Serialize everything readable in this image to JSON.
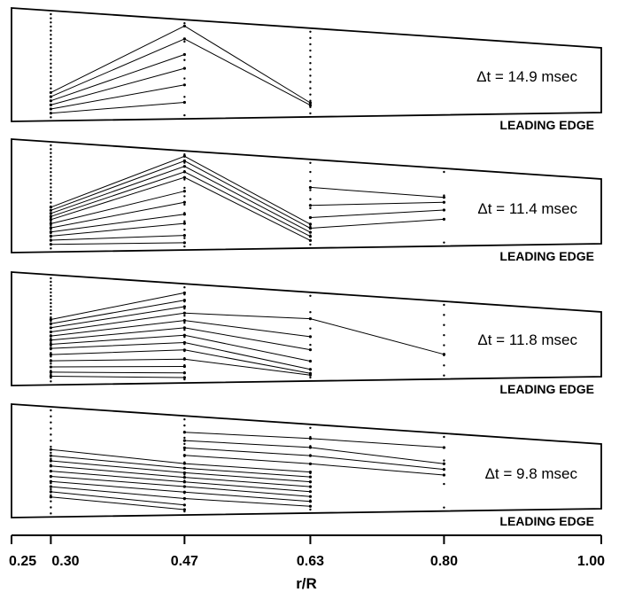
{
  "axis": {
    "title": "r/R",
    "ticks": [
      "0.25",
      "0.30",
      "0.47",
      "0.63",
      "0.80",
      "1.00"
    ],
    "tick_values": [
      0.25,
      0.3,
      0.47,
      0.63,
      0.8,
      1.0
    ]
  },
  "leading_edge_label": "LEADING EDGE",
  "panels": [
    {
      "dt_label": "Δt = 14.9 msec",
      "stations": [
        {
          "r": 0.3,
          "dots": 26
        },
        {
          "r": 0.47,
          "dots": 6
        },
        {
          "r": 0.63,
          "dots": 14
        }
      ],
      "lines": [
        [
          [
            0.3,
            0.24
          ],
          [
            0.47,
            0.97
          ],
          [
            0.63,
            0.13
          ]
        ],
        [
          [
            0.3,
            0.2
          ],
          [
            0.47,
            0.83
          ],
          [
            0.63,
            0.1
          ]
        ],
        [
          [
            0.3,
            0.16
          ],
          [
            0.47,
            0.66
          ]
        ],
        [
          [
            0.3,
            0.12
          ],
          [
            0.47,
            0.51
          ]
        ],
        [
          [
            0.3,
            0.08
          ],
          [
            0.47,
            0.33
          ]
        ],
        [
          [
            0.3,
            0.04
          ],
          [
            0.47,
            0.14
          ]
        ]
      ]
    },
    {
      "dt_label": "Δt = 11.4 msec",
      "stations": [
        {
          "r": 0.3,
          "dots": 28
        },
        {
          "r": 0.47,
          "dots": 12
        },
        {
          "r": 0.63,
          "dots": 10
        },
        {
          "r": 0.8,
          "dots": 4
        }
      ],
      "lines": [
        [
          [
            0.3,
            0.4
          ],
          [
            0.47,
            0.98
          ],
          [
            0.63,
            0.25
          ]
        ],
        [
          [
            0.3,
            0.37
          ],
          [
            0.47,
            0.93
          ],
          [
            0.63,
            0.2
          ]
        ],
        [
          [
            0.3,
            0.34
          ],
          [
            0.47,
            0.87
          ],
          [
            0.63,
            0.15
          ]
        ],
        [
          [
            0.3,
            0.31
          ],
          [
            0.47,
            0.81
          ],
          [
            0.63,
            0.1
          ]
        ],
        [
          [
            0.3,
            0.28
          ],
          [
            0.47,
            0.75
          ],
          [
            0.63,
            0.05
          ]
        ],
        [
          [
            0.3,
            0.24
          ],
          [
            0.47,
            0.6
          ]
        ],
        [
          [
            0.3,
            0.2
          ],
          [
            0.47,
            0.48
          ]
        ],
        [
          [
            0.3,
            0.16
          ],
          [
            0.47,
            0.35
          ]
        ],
        [
          [
            0.3,
            0.12
          ],
          [
            0.47,
            0.25
          ]
        ],
        [
          [
            0.3,
            0.08
          ],
          [
            0.47,
            0.12
          ]
        ],
        [
          [
            0.3,
            0.04
          ],
          [
            0.47,
            0.04
          ]
        ],
        [
          [
            0.63,
            0.7
          ],
          [
            0.8,
            0.64
          ]
        ],
        [
          [
            0.63,
            0.48
          ],
          [
            0.8,
            0.57
          ]
        ],
        [
          [
            0.63,
            0.33
          ],
          [
            0.8,
            0.46
          ]
        ],
        [
          [
            0.63,
            0.2
          ],
          [
            0.8,
            0.33
          ]
        ]
      ]
    },
    {
      "dt_label": "Δt = 11.8 msec",
      "stations": [
        {
          "r": 0.3,
          "dots": 30
        },
        {
          "r": 0.47,
          "dots": 14
        },
        {
          "r": 0.63,
          "dots": 6
        },
        {
          "r": 0.8,
          "dots": 8
        }
      ],
      "lines": [
        [
          [
            0.3,
            0.6
          ],
          [
            0.47,
            0.94
          ]
        ],
        [
          [
            0.3,
            0.56
          ],
          [
            0.47,
            0.86
          ]
        ],
        [
          [
            0.3,
            0.52
          ],
          [
            0.47,
            0.79
          ]
        ],
        [
          [
            0.3,
            0.48
          ],
          [
            0.47,
            0.72
          ],
          [
            0.63,
            0.72
          ],
          [
            0.8,
            0.3
          ]
        ],
        [
          [
            0.3,
            0.44
          ],
          [
            0.47,
            0.64
          ],
          [
            0.63,
            0.5
          ]
        ],
        [
          [
            0.3,
            0.4
          ],
          [
            0.47,
            0.56
          ],
          [
            0.63,
            0.34
          ]
        ],
        [
          [
            0.3,
            0.36
          ],
          [
            0.47,
            0.48
          ],
          [
            0.63,
            0.2
          ]
        ],
        [
          [
            0.3,
            0.32
          ],
          [
            0.47,
            0.4
          ],
          [
            0.63,
            0.1
          ]
        ],
        [
          [
            0.3,
            0.26
          ],
          [
            0.47,
            0.32
          ],
          [
            0.63,
            0.05
          ]
        ],
        [
          [
            0.3,
            0.2
          ],
          [
            0.47,
            0.22
          ],
          [
            0.63,
            0.03
          ]
        ],
        [
          [
            0.3,
            0.14
          ],
          [
            0.47,
            0.14
          ]
        ],
        [
          [
            0.3,
            0.09
          ],
          [
            0.47,
            0.07
          ]
        ],
        [
          [
            0.3,
            0.05
          ],
          [
            0.47,
            0.02
          ]
        ]
      ]
    },
    {
      "dt_label": "Δt = 9.8 msec",
      "stations": [
        {
          "r": 0.3,
          "dots": 18
        },
        {
          "r": 0.47,
          "dots": 16
        },
        {
          "r": 0.63,
          "dots": 10
        },
        {
          "r": 0.8,
          "dots": 4
        }
      ],
      "lines": [
        [
          [
            0.3,
            0.62
          ],
          [
            0.47,
            0.52
          ],
          [
            0.63,
            0.46
          ]
        ],
        [
          [
            0.3,
            0.56
          ],
          [
            0.47,
            0.47
          ],
          [
            0.63,
            0.4
          ]
        ],
        [
          [
            0.3,
            0.51
          ],
          [
            0.47,
            0.42
          ],
          [
            0.63,
            0.34
          ]
        ],
        [
          [
            0.3,
            0.46
          ],
          [
            0.47,
            0.37
          ],
          [
            0.63,
            0.28
          ]
        ],
        [
          [
            0.3,
            0.41
          ],
          [
            0.47,
            0.32
          ],
          [
            0.63,
            0.22
          ]
        ],
        [
          [
            0.3,
            0.36
          ],
          [
            0.47,
            0.27
          ],
          [
            0.63,
            0.16
          ]
        ],
        [
          [
            0.3,
            0.31
          ],
          [
            0.47,
            0.21
          ],
          [
            0.63,
            0.1
          ]
        ],
        [
          [
            0.3,
            0.26
          ],
          [
            0.47,
            0.14
          ],
          [
            0.63,
            0.04
          ]
        ],
        [
          [
            0.3,
            0.21
          ],
          [
            0.47,
            0.07
          ]
        ],
        [
          [
            0.3,
            0.16
          ],
          [
            0.47,
            0.02
          ]
        ],
        [
          [
            0.47,
            0.86
          ],
          [
            0.63,
            0.87
          ],
          [
            0.8,
            0.85
          ]
        ],
        [
          [
            0.47,
            0.77
          ],
          [
            0.63,
            0.76
          ],
          [
            0.8,
            0.62
          ]
        ],
        [
          [
            0.47,
            0.69
          ],
          [
            0.63,
            0.66
          ],
          [
            0.8,
            0.54
          ]
        ],
        [
          [
            0.47,
            0.61
          ],
          [
            0.63,
            0.56
          ],
          [
            0.8,
            0.46
          ]
        ]
      ]
    }
  ]
}
